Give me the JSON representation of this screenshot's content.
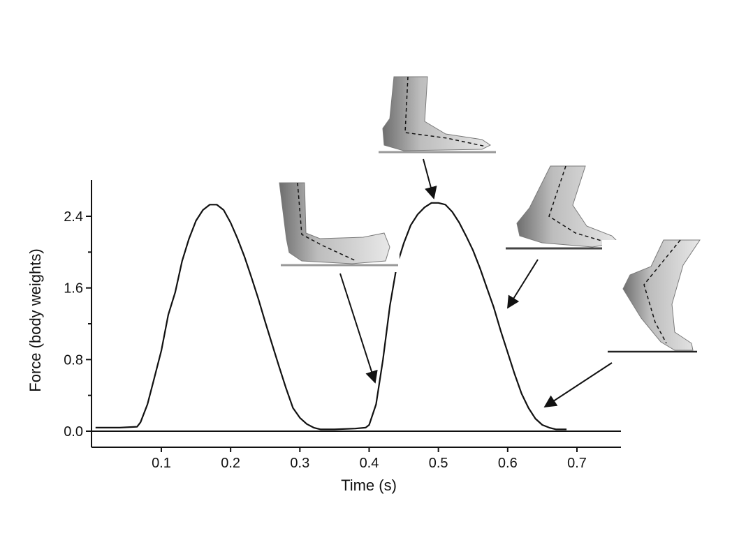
{
  "chart_data": {
    "type": "line",
    "xlabel": "Time (s)",
    "ylabel": "Force (body weights)",
    "xlim": [
      0,
      0.76
    ],
    "ylim": [
      -0.16,
      2.8
    ],
    "x_ticks": [
      0.1,
      0.2,
      0.3,
      0.4,
      0.5,
      0.6,
      0.7
    ],
    "x_tick_labels": [
      "0.1",
      "0.2",
      "0.3",
      "0.4",
      "0.5",
      "0.6",
      "0.7"
    ],
    "y_ticks": [
      0.0,
      0.8,
      1.6,
      2.4
    ],
    "y_tick_labels": [
      "0.0",
      "0.8",
      "1.6",
      "2.4"
    ],
    "y_minor_ticks": [
      0.4,
      1.2,
      2.0
    ],
    "zero_line": true,
    "grid": false,
    "legend": "none",
    "series": [
      {
        "x": [
          0.005,
          0.04,
          0.065,
          0.07,
          0.08,
          0.09,
          0.1,
          0.11,
          0.12,
          0.13,
          0.14,
          0.15,
          0.16,
          0.17,
          0.18,
          0.19,
          0.2,
          0.21,
          0.22,
          0.23,
          0.24,
          0.25,
          0.26,
          0.27,
          0.28,
          0.29,
          0.3,
          0.31,
          0.32,
          0.33,
          0.35,
          0.38,
          0.395,
          0.4,
          0.41,
          0.42,
          0.43,
          0.44,
          0.45,
          0.46,
          0.47,
          0.48,
          0.49,
          0.5,
          0.51,
          0.52,
          0.53,
          0.54,
          0.55,
          0.56,
          0.57,
          0.58,
          0.59,
          0.6,
          0.61,
          0.62,
          0.63,
          0.64,
          0.65,
          0.66,
          0.67,
          0.68,
          0.685
        ],
        "y": [
          0.04,
          0.04,
          0.05,
          0.1,
          0.3,
          0.6,
          0.9,
          1.3,
          1.55,
          1.9,
          2.15,
          2.35,
          2.47,
          2.53,
          2.53,
          2.47,
          2.33,
          2.15,
          1.95,
          1.72,
          1.48,
          1.22,
          0.97,
          0.72,
          0.48,
          0.26,
          0.15,
          0.08,
          0.04,
          0.02,
          0.02,
          0.03,
          0.04,
          0.07,
          0.3,
          0.8,
          1.4,
          1.85,
          2.1,
          2.3,
          2.42,
          2.5,
          2.55,
          2.55,
          2.53,
          2.45,
          2.33,
          2.18,
          2.02,
          1.82,
          1.6,
          1.38,
          1.12,
          0.88,
          0.64,
          0.42,
          0.26,
          0.14,
          0.07,
          0.04,
          0.02,
          0.02,
          0.02
        ]
      }
    ],
    "annotations": [
      {
        "panel": "foot-stage-1-image",
        "points_to_x": 0.41,
        "points_to_y": 0.53
      },
      {
        "panel": "foot-stage-2-image",
        "points_to_x": 0.495,
        "points_to_y": 2.56
      },
      {
        "panel": "foot-stage-3-image",
        "points_to_x": 0.595,
        "points_to_y": 1.35
      },
      {
        "panel": "foot-stage-4-image",
        "points_to_x": 0.65,
        "points_to_y": 0.25
      }
    ]
  },
  "colors": {
    "axis": "#111111",
    "line": "#111111",
    "ground_line": "#999999",
    "skin_light": "#eeeeee",
    "skin_mid": "#bdbdbd",
    "skin_dark": "#6e6e6e"
  }
}
